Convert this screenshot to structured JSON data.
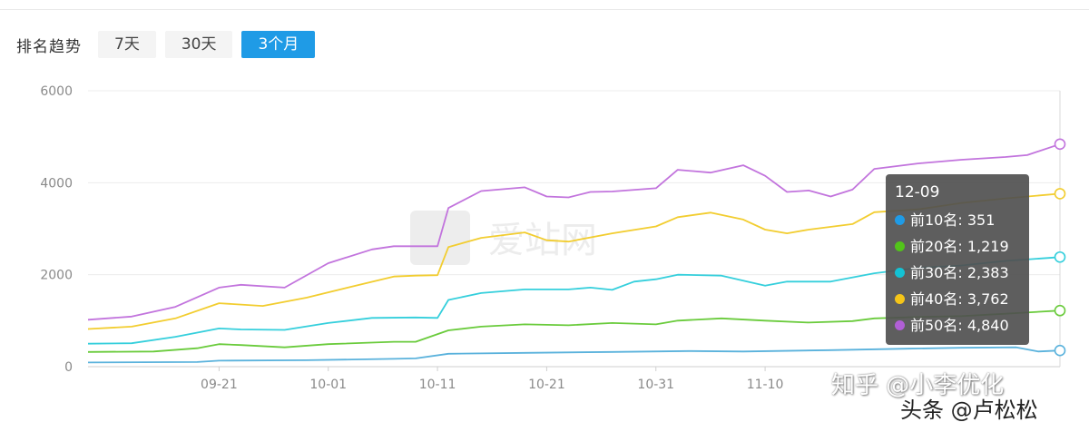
{
  "toolbar": {
    "label": "排名趋势",
    "tabs": [
      {
        "label": "7天",
        "active": false
      },
      {
        "label": "30天",
        "active": false
      },
      {
        "label": "3个月",
        "active": true
      }
    ]
  },
  "watermark": "爱站网",
  "tooltip": {
    "date": "12-09",
    "rows": [
      {
        "label": "前10名: 351",
        "color": "#1f9be6"
      },
      {
        "label": "前20名: 1,219",
        "color": "#52c41a"
      },
      {
        "label": "前30名: 2,383",
        "color": "#13c2d4"
      },
      {
        "label": "前40名: 3,762",
        "color": "#f5c518"
      },
      {
        "label": "前50名: 4,840",
        "color": "#b15fd6"
      }
    ]
  },
  "brand": {
    "zhihu": "知乎 @小李优化",
    "toutiao": "头条 @卢松松"
  },
  "chart_data": {
    "type": "line",
    "ylim": [
      0,
      6000
    ],
    "yticks": [
      "0",
      "2000",
      "4000",
      "6000"
    ],
    "xticks": [
      {
        "label": "09-21",
        "x": 12
      },
      {
        "label": "10-01",
        "x": 22
      },
      {
        "label": "10-11",
        "x": 32
      },
      {
        "label": "10-21",
        "x": 42
      },
      {
        "label": "10-31",
        "x": 52
      },
      {
        "label": "11-10",
        "x": 62
      }
    ],
    "x_count": 90,
    "series": [
      {
        "name": "前10名",
        "color": "#5ab2dc",
        "last": 351,
        "points": [
          [
            0,
            90
          ],
          [
            10,
            100
          ],
          [
            12,
            130
          ],
          [
            20,
            140
          ],
          [
            28,
            170
          ],
          [
            30,
            180
          ],
          [
            33,
            280
          ],
          [
            40,
            300
          ],
          [
            48,
            320
          ],
          [
            55,
            340
          ],
          [
            60,
            330
          ],
          [
            68,
            360
          ],
          [
            75,
            390
          ],
          [
            80,
            410
          ],
          [
            85,
            420
          ],
          [
            87,
            330
          ],
          [
            89,
            351
          ]
        ]
      },
      {
        "name": "前20名",
        "color": "#6acb3c",
        "last": 1219,
        "points": [
          [
            0,
            320
          ],
          [
            6,
            330
          ],
          [
            10,
            400
          ],
          [
            12,
            490
          ],
          [
            14,
            470
          ],
          [
            18,
            420
          ],
          [
            22,
            490
          ],
          [
            28,
            540
          ],
          [
            30,
            540
          ],
          [
            33,
            790
          ],
          [
            36,
            870
          ],
          [
            40,
            920
          ],
          [
            44,
            900
          ],
          [
            48,
            950
          ],
          [
            52,
            920
          ],
          [
            54,
            1000
          ],
          [
            58,
            1050
          ],
          [
            62,
            1000
          ],
          [
            66,
            960
          ],
          [
            70,
            990
          ],
          [
            72,
            1050
          ],
          [
            76,
            1080
          ],
          [
            80,
            1100
          ],
          [
            84,
            1150
          ],
          [
            89,
            1219
          ]
        ]
      },
      {
        "name": "前30名",
        "color": "#35cfdc",
        "last": 2383,
        "points": [
          [
            0,
            500
          ],
          [
            4,
            510
          ],
          [
            8,
            650
          ],
          [
            12,
            830
          ],
          [
            14,
            810
          ],
          [
            18,
            800
          ],
          [
            22,
            950
          ],
          [
            26,
            1060
          ],
          [
            30,
            1070
          ],
          [
            32,
            1060
          ],
          [
            33,
            1450
          ],
          [
            36,
            1600
          ],
          [
            40,
            1680
          ],
          [
            44,
            1680
          ],
          [
            46,
            1720
          ],
          [
            48,
            1670
          ],
          [
            50,
            1850
          ],
          [
            52,
            1900
          ],
          [
            54,
            2000
          ],
          [
            58,
            1980
          ],
          [
            62,
            1760
          ],
          [
            64,
            1850
          ],
          [
            68,
            1850
          ],
          [
            72,
            2030
          ],
          [
            76,
            2150
          ],
          [
            80,
            2200
          ],
          [
            84,
            2300
          ],
          [
            89,
            2383
          ]
        ]
      },
      {
        "name": "前40名",
        "color": "#f2cd30",
        "last": 3762,
        "points": [
          [
            0,
            820
          ],
          [
            4,
            870
          ],
          [
            8,
            1050
          ],
          [
            12,
            1380
          ],
          [
            16,
            1320
          ],
          [
            20,
            1500
          ],
          [
            24,
            1730
          ],
          [
            28,
            1960
          ],
          [
            30,
            1980
          ],
          [
            32,
            1990
          ],
          [
            33,
            2600
          ],
          [
            36,
            2800
          ],
          [
            40,
            2920
          ],
          [
            42,
            2750
          ],
          [
            44,
            2720
          ],
          [
            48,
            2900
          ],
          [
            52,
            3050
          ],
          [
            54,
            3250
          ],
          [
            57,
            3350
          ],
          [
            60,
            3200
          ],
          [
            62,
            2980
          ],
          [
            64,
            2900
          ],
          [
            66,
            2980
          ],
          [
            70,
            3100
          ],
          [
            72,
            3360
          ],
          [
            76,
            3420
          ],
          [
            80,
            3560
          ],
          [
            84,
            3660
          ],
          [
            89,
            3762
          ]
        ]
      },
      {
        "name": "前50名",
        "color": "#c274dd",
        "last": 4840,
        "points": [
          [
            0,
            1020
          ],
          [
            4,
            1090
          ],
          [
            8,
            1300
          ],
          [
            12,
            1720
          ],
          [
            14,
            1780
          ],
          [
            18,
            1720
          ],
          [
            22,
            2250
          ],
          [
            26,
            2550
          ],
          [
            28,
            2620
          ],
          [
            32,
            2620
          ],
          [
            33,
            3450
          ],
          [
            36,
            3820
          ],
          [
            40,
            3900
          ],
          [
            42,
            3700
          ],
          [
            44,
            3680
          ],
          [
            46,
            3800
          ],
          [
            48,
            3810
          ],
          [
            52,
            3880
          ],
          [
            54,
            4280
          ],
          [
            57,
            4220
          ],
          [
            60,
            4380
          ],
          [
            62,
            4150
          ],
          [
            64,
            3800
          ],
          [
            66,
            3830
          ],
          [
            68,
            3700
          ],
          [
            70,
            3850
          ],
          [
            72,
            4300
          ],
          [
            76,
            4420
          ],
          [
            80,
            4500
          ],
          [
            84,
            4560
          ],
          [
            86,
            4600
          ],
          [
            89,
            4840
          ]
        ]
      }
    ]
  }
}
